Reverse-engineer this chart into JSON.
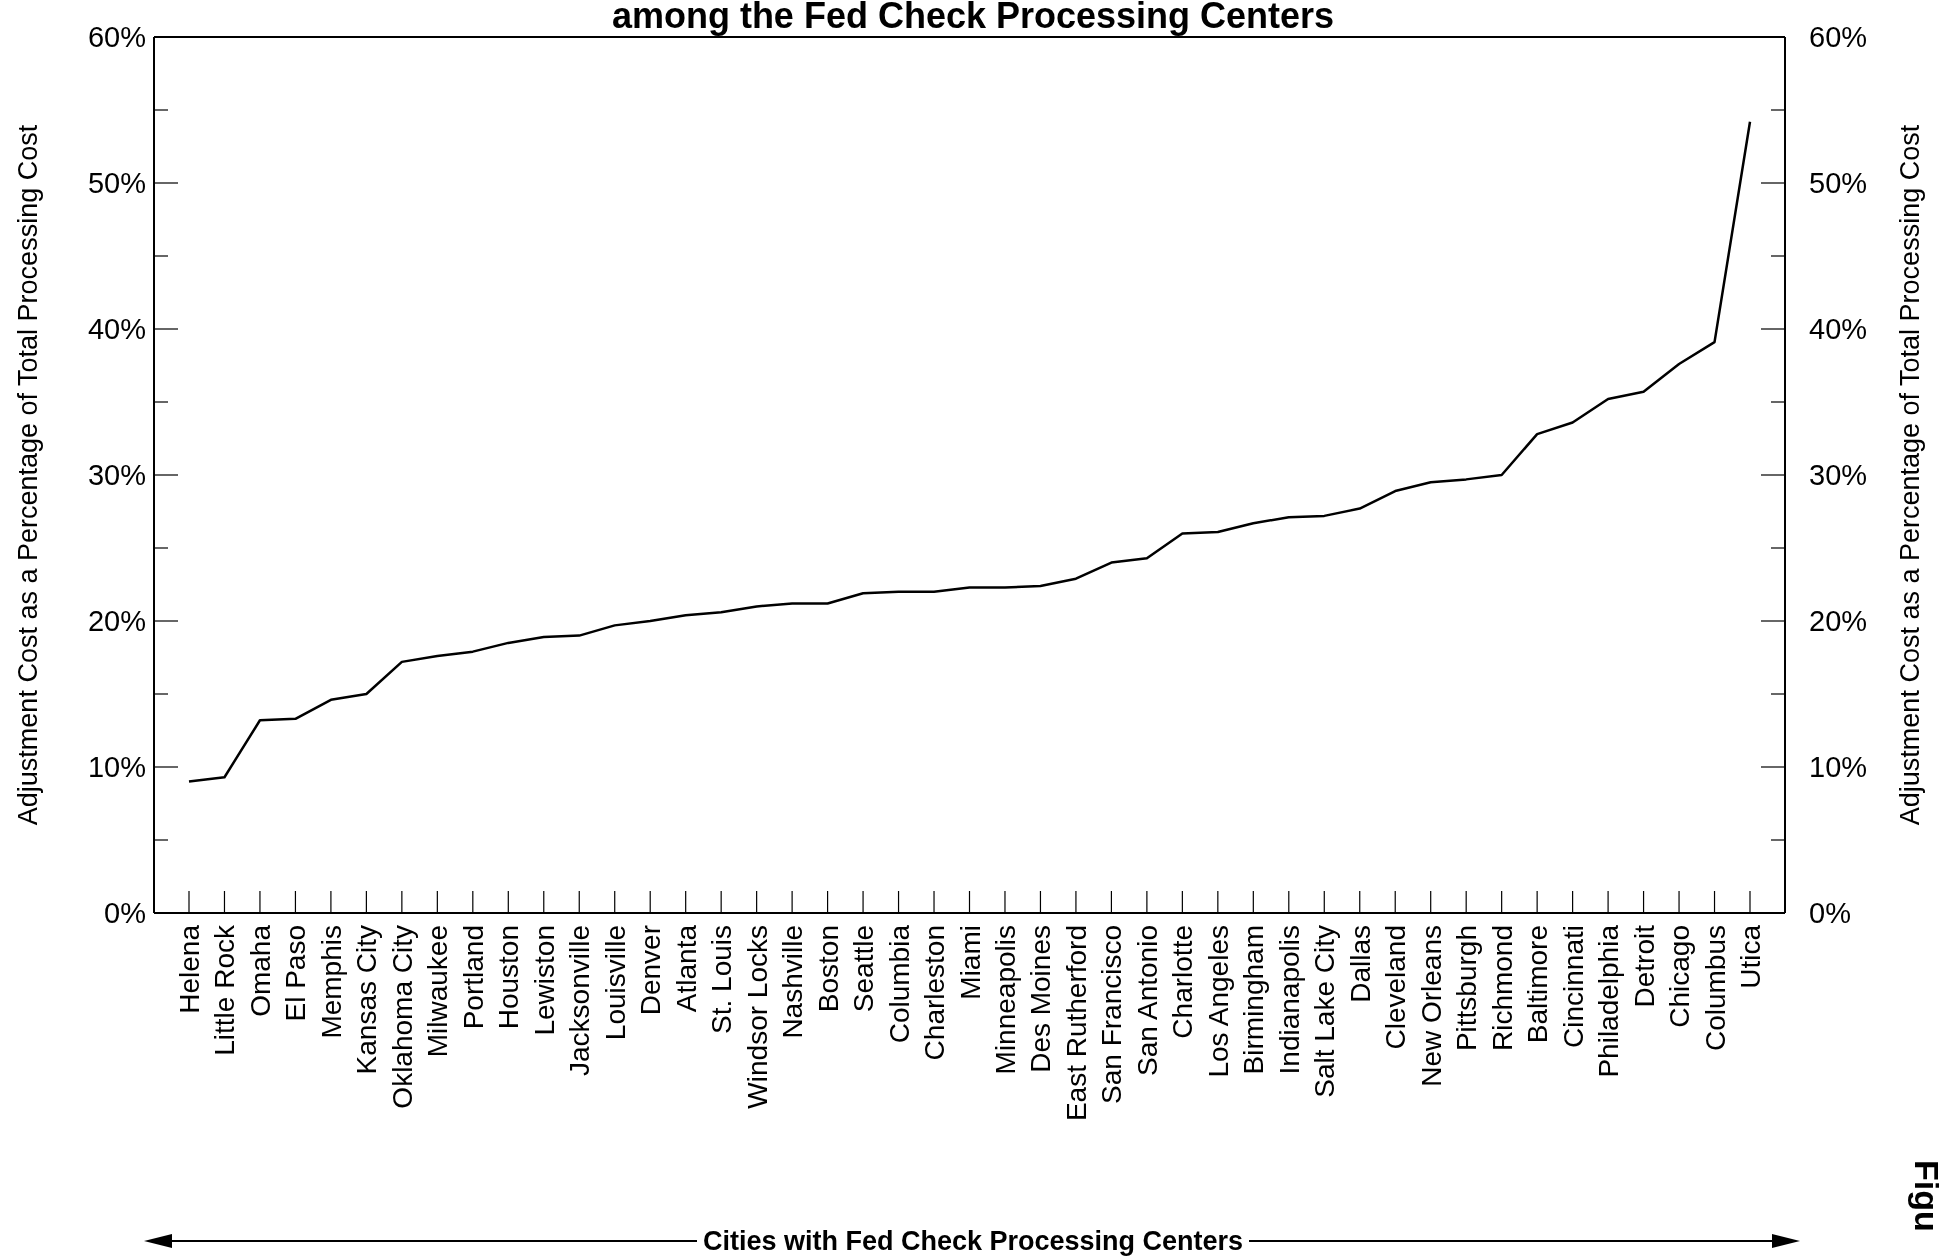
{
  "chart_data": {
    "type": "line",
    "title": "among the Fed Check Processing Centers",
    "xlabel": "Cities with Fed Check Processing Centers",
    "ylabel": "Adjustment Cost as a Percentage of Total Processing Cost",
    "y2label": "Adjustment Cost as a Percentage of Total Processing Cost",
    "categories": [
      "Helena",
      "Little Rock",
      "Omaha",
      "El Paso",
      "Memphis",
      "Kansas City",
      "Oklahoma City",
      "Milwaukee",
      "Portland",
      "Houston",
      "Lewiston",
      "Jacksonville",
      "Louisville",
      "Denver",
      "Atlanta",
      "St. Louis",
      "Windsor Locks",
      "Nashville",
      "Boston",
      "Seattle",
      "Columbia",
      "Charleston",
      "Miami",
      "Minneapolis",
      "Des Moines",
      "East Rutherford",
      "San Francisco",
      "San Antonio",
      "Charlotte",
      "Los Angeles",
      "Birmingham",
      "Indianapolis",
      "Salt Lake City",
      "Dallas",
      "Cleveland",
      "New Orleans",
      "Pittsburgh",
      "Richmond",
      "Baltimore",
      "Cincinnati",
      "Philadelphia",
      "Detroit",
      "Chicago",
      "Columbus",
      "Utica"
    ],
    "series": [
      {
        "color": "#000000",
        "values": [
          9.0,
          9.3,
          13.2,
          13.3,
          14.6,
          15.0,
          17.2,
          17.6,
          17.9,
          18.5,
          18.9,
          19.0,
          19.7,
          20.0,
          20.4,
          20.6,
          21.0,
          21.2,
          21.2,
          21.9,
          22.0,
          22.0,
          22.3,
          22.3,
          22.4,
          22.9,
          24.0,
          24.3,
          26.0,
          26.1,
          26.7,
          27.1,
          27.2,
          27.7,
          28.9,
          29.5,
          29.7,
          30.0,
          32.8,
          33.6,
          35.2,
          35.7,
          37.6,
          39.1,
          54.2
        ]
      }
    ],
    "ylim": [
      0,
      60
    ],
    "yticks": [
      {
        "value": 0,
        "label": "0%"
      },
      {
        "value": 5,
        "label": null
      },
      {
        "value": 10,
        "label": "10%"
      },
      {
        "value": 15,
        "label": null
      },
      {
        "value": 20,
        "label": "20%"
      },
      {
        "value": 25,
        "label": null
      },
      {
        "value": 30,
        "label": "30%"
      },
      {
        "value": 35,
        "label": null
      },
      {
        "value": 40,
        "label": "40%"
      },
      {
        "value": 45,
        "label": null
      },
      {
        "value": 50,
        "label": "50%"
      },
      {
        "value": 55,
        "label": null
      },
      {
        "value": 60,
        "label": "60%"
      }
    ],
    "y2lim": [
      0,
      60
    ],
    "y2ticks": [
      {
        "value": 0,
        "label": "0%"
      },
      {
        "value": 5,
        "label": null
      },
      {
        "value": 10,
        "label": "10%"
      },
      {
        "value": 15,
        "label": null
      },
      {
        "value": 20,
        "label": "20%"
      },
      {
        "value": 25,
        "label": null
      },
      {
        "value": 30,
        "label": "30%"
      },
      {
        "value": 35,
        "label": null
      },
      {
        "value": 40,
        "label": "40%"
      },
      {
        "value": 45,
        "label": null
      },
      {
        "value": 50,
        "label": "50%"
      },
      {
        "value": 55,
        "label": null
      },
      {
        "value": 60,
        "label": "60%"
      }
    ],
    "grid": false,
    "legend": false,
    "annotations": [
      "Figu"
    ]
  }
}
